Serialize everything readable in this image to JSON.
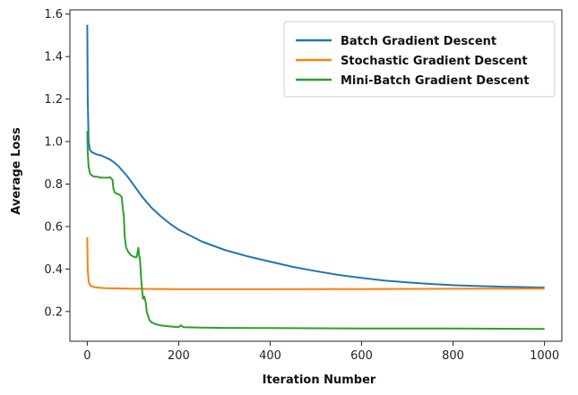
{
  "chart_data": {
    "type": "line",
    "xlabel": "Iteration Number",
    "ylabel": "Average Loss",
    "xlim": [
      -38,
      1038
    ],
    "ylim": [
      0.06,
      1.62
    ],
    "xticks": [
      0,
      200,
      400,
      600,
      800,
      1000
    ],
    "yticks": [
      0.2,
      0.4,
      0.6,
      0.8,
      1.0,
      1.2,
      1.4,
      1.6
    ],
    "xtick_labels": [
      "0",
      "200",
      "400",
      "600",
      "800",
      "1000"
    ],
    "ytick_labels": [
      "0.2",
      "0.4",
      "0.6",
      "0.8",
      "1.0",
      "1.2",
      "1.4",
      "1.6"
    ],
    "grid": false,
    "legend_position": "top-right",
    "series": [
      {
        "name": "Batch Gradient Descent",
        "color": "#1f77b4",
        "x": [
          0,
          1,
          3,
          6,
          10,
          20,
          30,
          40,
          50,
          60,
          70,
          80,
          90,
          100,
          120,
          140,
          160,
          180,
          200,
          250,
          300,
          350,
          400,
          450,
          500,
          550,
          600,
          650,
          700,
          750,
          800,
          850,
          900,
          950,
          1000
        ],
        "y": [
          1.55,
          1.2,
          1.0,
          0.96,
          0.95,
          0.94,
          0.935,
          0.925,
          0.915,
          0.9,
          0.88,
          0.855,
          0.83,
          0.8,
          0.74,
          0.69,
          0.65,
          0.615,
          0.585,
          0.53,
          0.49,
          0.46,
          0.435,
          0.41,
          0.39,
          0.372,
          0.358,
          0.346,
          0.337,
          0.33,
          0.324,
          0.32,
          0.317,
          0.315,
          0.313
        ]
      },
      {
        "name": "Stochastic Gradient Descent",
        "color": "#ff7f0e",
        "x": [
          0,
          1,
          3,
          6,
          10,
          20,
          40,
          100,
          200,
          400,
          600,
          800,
          1000
        ],
        "y": [
          0.55,
          0.4,
          0.34,
          0.325,
          0.318,
          0.313,
          0.31,
          0.307,
          0.305,
          0.305,
          0.306,
          0.307,
          0.308
        ]
      },
      {
        "name": "Mini-Batch Gradient Descent",
        "color": "#2ca02c",
        "x": [
          0,
          1,
          3,
          6,
          10,
          15,
          20,
          30,
          40,
          45,
          50,
          55,
          57,
          60,
          65,
          70,
          75,
          78,
          80,
          82,
          85,
          90,
          95,
          100,
          105,
          108,
          110,
          112,
          113,
          115,
          118,
          120,
          122,
          125,
          128,
          130,
          133,
          136,
          140,
          150,
          160,
          170,
          180,
          190,
          200,
          205,
          210,
          250,
          300,
          400,
          500,
          600,
          700,
          800,
          900,
          1000
        ],
        "y": [
          1.05,
          0.95,
          0.88,
          0.85,
          0.84,
          0.835,
          0.835,
          0.83,
          0.83,
          0.83,
          0.832,
          0.82,
          0.78,
          0.76,
          0.755,
          0.75,
          0.74,
          0.68,
          0.65,
          0.55,
          0.5,
          0.48,
          0.465,
          0.46,
          0.455,
          0.455,
          0.48,
          0.5,
          0.47,
          0.45,
          0.35,
          0.3,
          0.26,
          0.27,
          0.24,
          0.2,
          0.18,
          0.16,
          0.15,
          0.14,
          0.135,
          0.132,
          0.13,
          0.128,
          0.127,
          0.135,
          0.126,
          0.124,
          0.123,
          0.122,
          0.121,
          0.12,
          0.12,
          0.12,
          0.119,
          0.118
        ]
      }
    ]
  }
}
